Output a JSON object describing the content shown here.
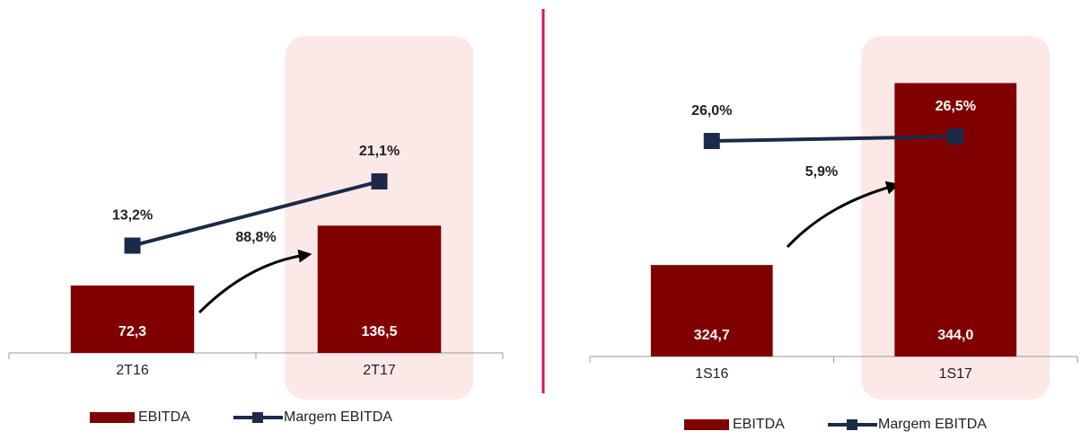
{
  "chart_data": [
    {
      "type": "bar_line",
      "categories": [
        "2T16",
        "2T17"
      ],
      "series": [
        {
          "name": "EBITDA",
          "color": "#800000",
          "values": [
            72.3,
            136.5
          ],
          "value_labels": [
            "72,3",
            "136,5"
          ]
        },
        {
          "name": "Margem EBITDA",
          "color": "#1b2a48",
          "axis": "y2",
          "values": [
            13.2,
            21.1
          ],
          "value_labels": [
            "13,2%",
            "21,1%"
          ]
        }
      ],
      "ylim": [
        0,
        340
      ],
      "y2lim": [
        0,
        39
      ],
      "annotations": [
        "88,8%"
      ],
      "highlight_color": "#fde8e8"
    },
    {
      "type": "bar_line",
      "categories": [
        "1S16",
        "1S17"
      ],
      "series": [
        {
          "name": "EBITDA",
          "color": "#800000",
          "values": [
            324.7,
            344.0
          ],
          "value_labels": [
            "324,7",
            "344,0"
          ]
        },
        {
          "name": "Margem EBITDA",
          "color": "#1b2a48",
          "axis": "y2",
          "values": [
            26.0,
            26.5
          ],
          "value_labels": [
            "26,0%",
            "26,5%"
          ]
        }
      ],
      "ylim": [
        315,
        349
      ],
      "y2lim": [
        2,
        37.7
      ],
      "annotations": [
        "5,9%"
      ],
      "highlight_color": "#fde8e8"
    }
  ]
}
